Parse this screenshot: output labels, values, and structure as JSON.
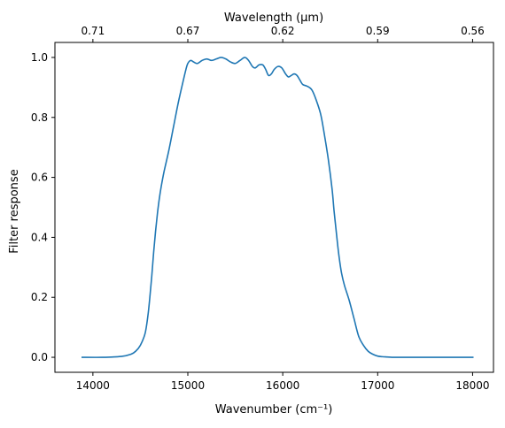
{
  "chart_data": {
    "type": "line",
    "xlabel": "Wavenumber (cm⁻¹)",
    "ylabel": "Filter response",
    "top_axis_label": "Wavelength (μm)",
    "xlim": [
      13600,
      18220
    ],
    "ylim": [
      -0.05,
      1.05
    ],
    "x_ticks": [
      14000,
      15000,
      16000,
      17000,
      18000
    ],
    "y_ticks": [
      0.0,
      0.2,
      0.4,
      0.6,
      0.8,
      1.0
    ],
    "top_ticks": [
      {
        "label": "0.71",
        "value": 14000
      },
      {
        "label": "0.67",
        "value": 15000
      },
      {
        "label": "0.62",
        "value": 16000
      },
      {
        "label": "0.59",
        "value": 17000
      },
      {
        "label": "0.56",
        "value": 18000
      }
    ],
    "grid": false,
    "line_color": "#1f77b4",
    "series": [
      {
        "x": [
          13880,
          14100,
          14300,
          14400,
          14450,
          14500,
          14550,
          14580,
          14600,
          14620,
          14640,
          14660,
          14680,
          14700,
          14720,
          14750,
          14800,
          14850,
          14900,
          14950,
          14980,
          15000,
          15030,
          15060,
          15100,
          15150,
          15200,
          15250,
          15300,
          15350,
          15400,
          15450,
          15500,
          15550,
          15600,
          15640,
          15680,
          15710,
          15750,
          15790,
          15820,
          15850,
          15880,
          15910,
          15950,
          15990,
          16030,
          16060,
          16090,
          16120,
          16150,
          16180,
          16210,
          16250,
          16280,
          16310,
          16350,
          16400,
          16440,
          16480,
          16520,
          16540,
          16560,
          16580,
          16600,
          16620,
          16650,
          16700,
          16750,
          16800,
          16850,
          16900,
          16950,
          17000,
          17050,
          17100,
          17150,
          17200,
          17300,
          17500,
          17800,
          18010
        ],
        "y": [
          0.0,
          0.0,
          0.003,
          0.01,
          0.02,
          0.04,
          0.08,
          0.14,
          0.2,
          0.27,
          0.35,
          0.42,
          0.48,
          0.53,
          0.57,
          0.62,
          0.69,
          0.77,
          0.85,
          0.92,
          0.96,
          0.98,
          0.99,
          0.985,
          0.98,
          0.99,
          0.995,
          0.99,
          0.995,
          1.0,
          0.995,
          0.985,
          0.98,
          0.99,
          1.0,
          0.99,
          0.97,
          0.965,
          0.975,
          0.975,
          0.96,
          0.94,
          0.945,
          0.96,
          0.97,
          0.965,
          0.945,
          0.935,
          0.94,
          0.945,
          0.94,
          0.925,
          0.91,
          0.905,
          0.9,
          0.89,
          0.86,
          0.81,
          0.74,
          0.66,
          0.56,
          0.49,
          0.43,
          0.37,
          0.32,
          0.28,
          0.24,
          0.19,
          0.13,
          0.07,
          0.04,
          0.02,
          0.01,
          0.004,
          0.002,
          0.001,
          0.0,
          0.0,
          0.0,
          0.0,
          0.0,
          0.0
        ]
      }
    ]
  }
}
